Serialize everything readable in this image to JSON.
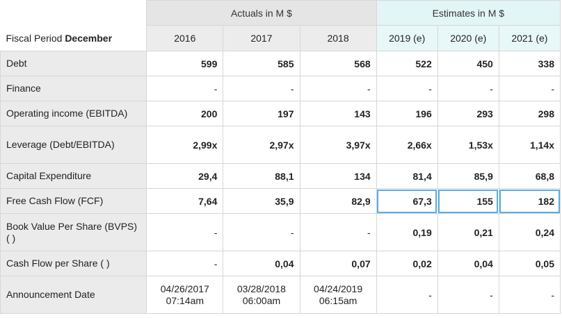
{
  "header": {
    "actuals_group": "Actuals in M $",
    "estimates_group": "Estimates in M $",
    "fiscal_prefix": "Fiscal Period",
    "fiscal_month": "December",
    "years": [
      "2016",
      "2017",
      "2018",
      "2019 (e)",
      "2020 (e)",
      "2021 (e)"
    ]
  },
  "rows": [
    {
      "label": "Debt",
      "values": [
        "599",
        "585",
        "568",
        "522",
        "450",
        "338"
      ]
    },
    {
      "label": "Finance",
      "values": [
        "-",
        "-",
        "-",
        "-",
        "-",
        "-"
      ]
    },
    {
      "label": "Operating income (EBITDA)",
      "values": [
        "200",
        "197",
        "143",
        "196",
        "293",
        "298"
      ]
    },
    {
      "label": "Leverage (Debt/EBITDA)",
      "values": [
        "2,99x",
        "2,97x",
        "3,97x",
        "2,66x",
        "1,53x",
        "1,14x"
      ]
    },
    {
      "label": "Capital Expenditure",
      "values": [
        "29,4",
        "88,1",
        "134",
        "81,4",
        "85,9",
        "68,8"
      ]
    },
    {
      "label": "Free Cash Flow (FCF)",
      "values": [
        "7,64",
        "35,9",
        "82,9",
        "67,3",
        "155",
        "182"
      ]
    },
    {
      "label": "Book Value Per Share (BVPS) ( )",
      "values": [
        "-",
        "-",
        "-",
        "0,19",
        "0,21",
        "0,24"
      ]
    },
    {
      "label": "Cash Flow per Share ( )",
      "values": [
        "-",
        "0,04",
        "0,07",
        "0,02",
        "0,04",
        "0,05"
      ]
    },
    {
      "label": "Announcement Date",
      "values": [
        "04/26/2017\n07:14am",
        "03/28/2018\n06:00am",
        "04/24/2019\n06:15am",
        "-",
        "-",
        "-"
      ]
    }
  ]
}
